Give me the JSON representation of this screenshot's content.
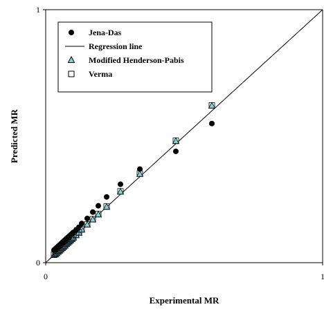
{
  "chart_data": {
    "type": "scatter",
    "title": "",
    "xlabel": "Experimental MR",
    "ylabel": "Predicted MR",
    "xlim": [
      0,
      1
    ],
    "ylim": [
      0,
      1
    ],
    "grid": false,
    "legend_position": "top-left",
    "x_ticks": [
      {
        "value": 0,
        "label": "0"
      },
      {
        "value": 1,
        "label": "1"
      }
    ],
    "y_ticks": [
      {
        "value": 0,
        "label": "0"
      },
      {
        "value": 1,
        "label": "1"
      }
    ],
    "regression_line": {
      "name": "Regression line",
      "x": [
        0,
        1
      ],
      "y": [
        0,
        1
      ],
      "color": "#000000"
    },
    "series": [
      {
        "name": "Jena-Das",
        "marker": "circle",
        "color": "#000000",
        "x": [
          0.03,
          0.035,
          0.04,
          0.045,
          0.05,
          0.055,
          0.06,
          0.065,
          0.07,
          0.075,
          0.08,
          0.085,
          0.09,
          0.095,
          0.1,
          0.11,
          0.12,
          0.13,
          0.15,
          0.17,
          0.19,
          0.22,
          0.27,
          0.34,
          0.47,
          0.6
        ],
        "y": [
          0.05,
          0.055,
          0.06,
          0.065,
          0.07,
          0.075,
          0.08,
          0.085,
          0.09,
          0.095,
          0.1,
          0.105,
          0.11,
          0.115,
          0.12,
          0.13,
          0.14,
          0.155,
          0.175,
          0.2,
          0.225,
          0.26,
          0.31,
          0.37,
          0.44,
          0.55
        ]
      },
      {
        "name": "Modified Henderson-Pabis",
        "marker": "triangle",
        "color": "#7fd6d8",
        "x": [
          0.03,
          0.035,
          0.04,
          0.045,
          0.05,
          0.055,
          0.06,
          0.065,
          0.07,
          0.075,
          0.08,
          0.085,
          0.09,
          0.095,
          0.1,
          0.11,
          0.12,
          0.13,
          0.15,
          0.17,
          0.19,
          0.22,
          0.27,
          0.34,
          0.47,
          0.6
        ],
        "y": [
          0.03,
          0.033,
          0.037,
          0.042,
          0.047,
          0.052,
          0.057,
          0.062,
          0.067,
          0.073,
          0.078,
          0.083,
          0.088,
          0.093,
          0.098,
          0.108,
          0.118,
          0.13,
          0.15,
          0.17,
          0.19,
          0.22,
          0.28,
          0.35,
          0.48,
          0.62
        ]
      },
      {
        "name": "Verma",
        "marker": "square",
        "color": "#000000",
        "x": [
          0.03,
          0.035,
          0.04,
          0.045,
          0.05,
          0.055,
          0.06,
          0.065,
          0.07,
          0.075,
          0.08,
          0.085,
          0.09,
          0.095,
          0.1,
          0.11,
          0.12,
          0.13,
          0.15,
          0.17,
          0.19,
          0.22,
          0.27,
          0.34,
          0.47,
          0.6
        ],
        "y": [
          0.032,
          0.035,
          0.039,
          0.044,
          0.049,
          0.054,
          0.059,
          0.064,
          0.069,
          0.075,
          0.08,
          0.085,
          0.09,
          0.095,
          0.1,
          0.11,
          0.12,
          0.132,
          0.152,
          0.172,
          0.192,
          0.222,
          0.282,
          0.352,
          0.482,
          0.622
        ]
      }
    ]
  }
}
